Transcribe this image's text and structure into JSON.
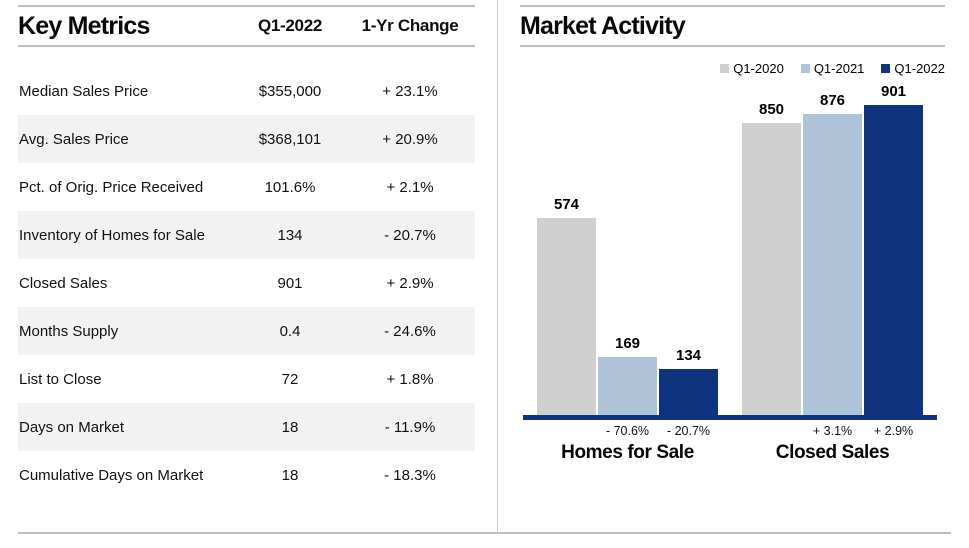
{
  "key_metrics": {
    "title": "Key Metrics",
    "columns": [
      "Q1-2022",
      "1-Yr Change"
    ],
    "stripe_color": "#f2f2f2",
    "rows": [
      {
        "label": "Median Sales Price",
        "value": "$355,000",
        "change": "+ 23.1%"
      },
      {
        "label": "Avg. Sales Price",
        "value": "$368,101",
        "change": "+ 20.9%"
      },
      {
        "label": "Pct. of Orig. Price Received",
        "value": "101.6%",
        "change": "+ 2.1%"
      },
      {
        "label": "Inventory of Homes for Sale",
        "value": "134",
        "change": "- 20.7%"
      },
      {
        "label": "Closed Sales",
        "value": "901",
        "change": "+ 2.9%"
      },
      {
        "label": "Months Supply",
        "value": "0.4",
        "change": "- 24.6%"
      },
      {
        "label": "List to Close",
        "value": "72",
        "change": "+ 1.8%"
      },
      {
        "label": "Days on Market",
        "value": "18",
        "change": "- 11.9%"
      },
      {
        "label": "Cumulative Days on Market",
        "value": "18",
        "change": "- 18.3%"
      }
    ]
  },
  "market_activity": {
    "title": "Market Activity"
  },
  "chart_data": {
    "type": "bar",
    "title": "Market Activity",
    "legend_position": "top-right",
    "grid": false,
    "ylim": [
      0,
      901
    ],
    "axis_color": "#0e3480",
    "series": [
      {
        "name": "Q1-2020",
        "color": "#cfcfcf",
        "values": [
          574,
          850
        ]
      },
      {
        "name": "Q1-2021",
        "color": "#aec3d8",
        "values": [
          169,
          876
        ]
      },
      {
        "name": "Q1-2022",
        "color": "#0e3480",
        "values": [
          134,
          901
        ]
      }
    ],
    "categories": [
      "Homes for Sale",
      "Closed Sales"
    ],
    "groups": [
      {
        "label": "Homes for Sale",
        "values": [
          574,
          169,
          134
        ],
        "value_labels": [
          "574",
          "169",
          "134"
        ],
        "change_labels": [
          "",
          "- 70.6%",
          "- 20.7%"
        ]
      },
      {
        "label": "Closed Sales",
        "values": [
          850,
          876,
          901
        ],
        "value_labels": [
          "850",
          "876",
          "901"
        ],
        "change_labels": [
          "",
          "+ 3.1%",
          "+ 2.9%"
        ]
      }
    ]
  }
}
